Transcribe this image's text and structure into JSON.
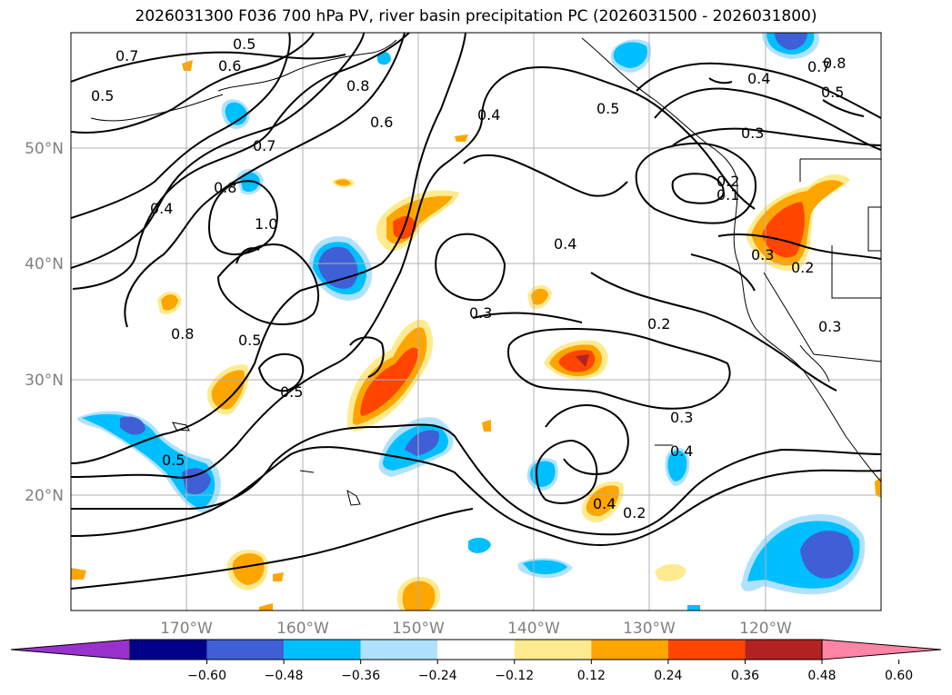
{
  "title": "2026031300 F036 700 hPa PV, river basin precipitation PC (2026031500 - 2026031800)",
  "latitudes": [
    "50°N",
    "40°N",
    "30°N",
    "20°N"
  ],
  "longitudes": [
    "170°W",
    "160°W",
    "150°W",
    "140°W",
    "130°W",
    "120°W"
  ],
  "contour_labels": [
    "0.7",
    "0.5",
    "0.6",
    "0.5",
    "0.8",
    "0.6",
    "0.4",
    "0.5",
    "0.7",
    "0.8",
    "0.5",
    "0.4",
    "0.3",
    "0.4",
    "0.7",
    "0.8",
    "1.0",
    "0.4",
    "0.3",
    "0.1",
    "0.8",
    "0.5",
    "0.5",
    "0.3",
    "0.2",
    "0.3",
    "0.2",
    "0.3",
    "0.5",
    "0.4",
    "0.4",
    "0.2",
    "0.2"
  ],
  "colorbar": {
    "ticks": [
      "−0.60",
      "−0.48",
      "−0.36",
      "−0.24",
      "−0.12",
      "0.12",
      "0.24",
      "0.36",
      "0.48",
      "0.60"
    ],
    "colors": [
      "#9932cc",
      "#00008b",
      "#3f5fd6",
      "#00bfff",
      "#b0e2ff",
      "#ffffff",
      "#ffeb8f",
      "#ffa500",
      "#ff4500",
      "#b22222",
      "#ff85a6"
    ]
  }
}
